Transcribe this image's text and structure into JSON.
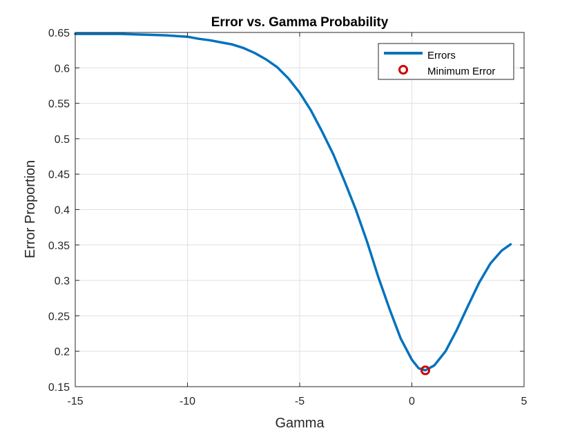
{
  "chart_data": {
    "type": "line",
    "title": "Error vs. Gamma Probability",
    "xlabel": "Gamma",
    "ylabel": "Error Proportion",
    "xlim": [
      -15,
      5
    ],
    "ylim": [
      0.15,
      0.65
    ],
    "xticks": [
      -15,
      -10,
      -5,
      0,
      5
    ],
    "xtick_labels": [
      "-15",
      "-10",
      "-5",
      "0",
      "5"
    ],
    "yticks": [
      0.15,
      0.2,
      0.25,
      0.3,
      0.35,
      0.4,
      0.45,
      0.5,
      0.55,
      0.6,
      0.65
    ],
    "ytick_labels": [
      "0.15",
      "0.2",
      "0.25",
      "0.3",
      "0.35",
      "0.4",
      "0.45",
      "0.5",
      "0.55",
      "0.6",
      "0.65"
    ],
    "grid": true,
    "legend_position": "top-right",
    "series": [
      {
        "name": "Errors",
        "color": "#0072BD",
        "x": [
          -15,
          -14,
          -13,
          -12,
          -11,
          -10,
          -9.5,
          -9,
          -8.5,
          -8,
          -7.5,
          -7,
          -6.5,
          -6,
          -5.5,
          -5,
          -4.5,
          -4,
          -3.5,
          -3,
          -2.5,
          -2,
          -1.5,
          -1,
          -0.5,
          0,
          0.3,
          0.6,
          1,
          1.5,
          2,
          2.5,
          3,
          3.5,
          4,
          4.4
        ],
        "y": [
          0.648,
          0.648,
          0.648,
          0.647,
          0.646,
          0.644,
          0.641,
          0.639,
          0.636,
          0.633,
          0.628,
          0.621,
          0.612,
          0.601,
          0.585,
          0.565,
          0.54,
          0.51,
          0.478,
          0.44,
          0.4,
          0.355,
          0.305,
          0.26,
          0.218,
          0.188,
          0.176,
          0.173,
          0.18,
          0.2,
          0.23,
          0.264,
          0.297,
          0.324,
          0.342,
          0.351
        ]
      },
      {
        "name": "Minimum Error",
        "color": "#D00000",
        "marker": "circle",
        "x": [
          0.6
        ],
        "y": [
          0.173
        ]
      }
    ]
  }
}
